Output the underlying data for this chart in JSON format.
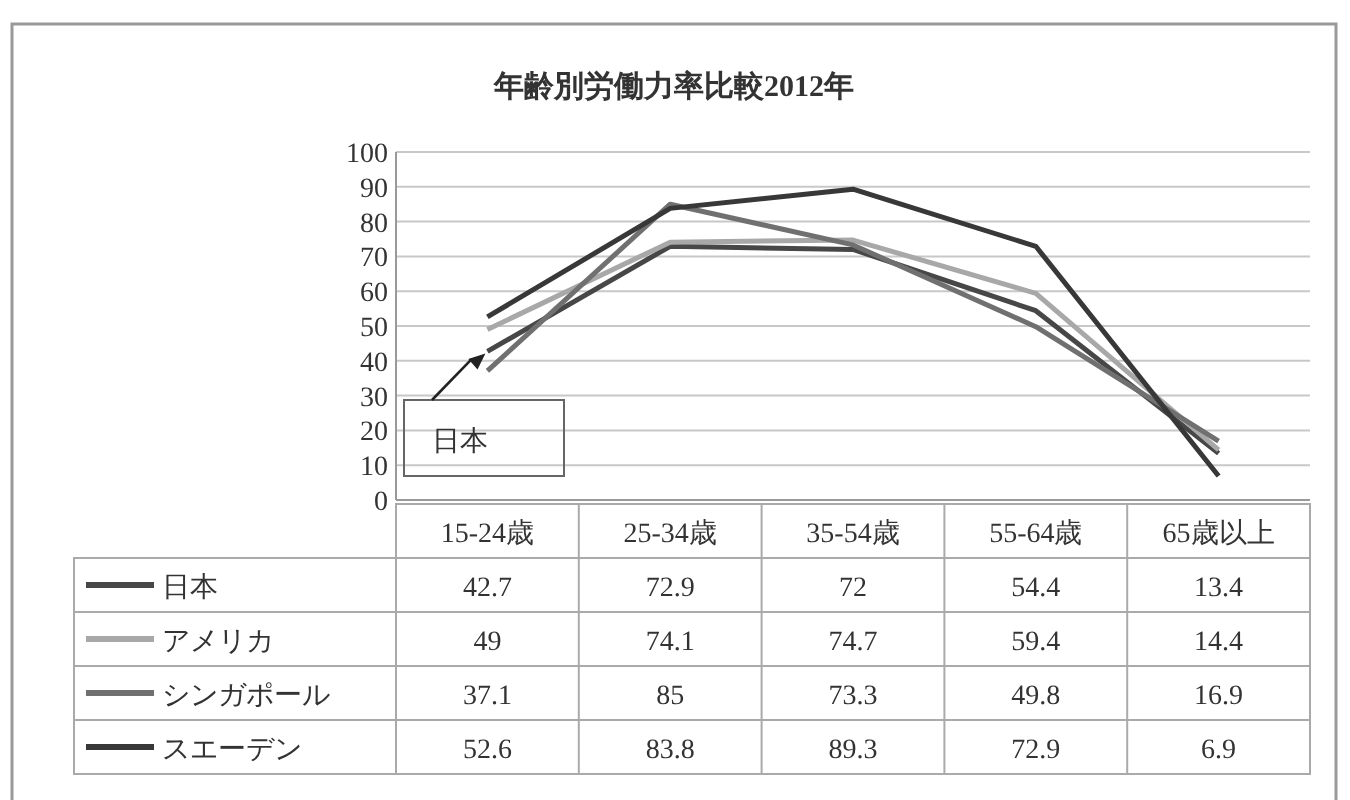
{
  "chart_data": {
    "type": "line",
    "title": "年齢別労働力率比較2012年",
    "categories": [
      "15-24歳",
      "25-34歳",
      "35-54歳",
      "55-64歳",
      "65歳以上"
    ],
    "series": [
      {
        "name": "日本",
        "color": "#474747",
        "values": [
          42.7,
          72.9,
          72,
          54.4,
          13.4
        ]
      },
      {
        "name": "アメリカ",
        "color": "#a8a8a8",
        "values": [
          49,
          74.1,
          74.7,
          59.4,
          14.4
        ]
      },
      {
        "name": "シンガポール",
        "color": "#707070",
        "values": [
          37.1,
          85,
          73.3,
          49.8,
          16.9
        ]
      },
      {
        "name": "スエーデン",
        "color": "#383838",
        "values": [
          52.6,
          83.8,
          89.3,
          72.9,
          6.9
        ]
      }
    ],
    "ylim": [
      0,
      100
    ],
    "yticks": [
      0,
      10,
      20,
      30,
      40,
      50,
      60,
      70,
      80,
      90,
      100
    ],
    "grid": "y",
    "legend": "bottom",
    "data_labels": true,
    "annotations": [
      {
        "text": "日本",
        "x": "15-24歳",
        "y": 42.7
      }
    ]
  }
}
